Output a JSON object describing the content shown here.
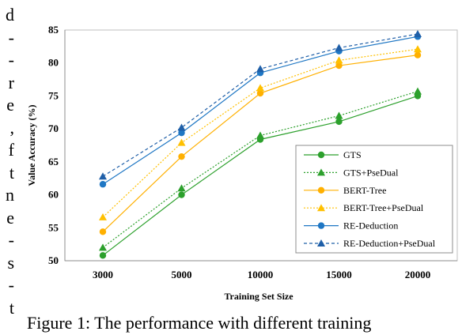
{
  "side_text": [
    "d",
    "-",
    "-",
    "r",
    "e",
    ",",
    "f",
    "t",
    "n",
    "e",
    "-",
    "s",
    "-",
    "t"
  ],
  "caption": "Figure 1: The performance with different training",
  "chart_data": {
    "type": "line",
    "xlabel": "Training Set Size",
    "ylabel": "Value Accuracy (%)",
    "categories": [
      "3000",
      "5000",
      "10000",
      "15000",
      "20000"
    ],
    "ylim": [
      50,
      85
    ],
    "yticks": [
      50,
      55,
      60,
      65,
      70,
      75,
      80,
      85
    ],
    "grid": false,
    "legend_position": "bottom-right",
    "series": [
      {
        "name": "GTS",
        "values": [
          50.8,
          60.0,
          68.4,
          71.1,
          75.0
        ],
        "color": "#2ca02c",
        "dash": "solid",
        "marker": "circle"
      },
      {
        "name": "GTS+PseDual",
        "values": [
          52.0,
          61.0,
          69.0,
          72.0,
          75.7
        ],
        "color": "#2ca02c",
        "dash": "dotted",
        "marker": "triangle"
      },
      {
        "name": "BERT-Tree",
        "values": [
          54.4,
          65.8,
          75.4,
          79.6,
          81.2
        ],
        "color": "#ffb000",
        "dash": "solid",
        "marker": "circle"
      },
      {
        "name": "BERT-Tree+PseDual",
        "values": [
          56.6,
          67.9,
          76.2,
          80.4,
          82.1
        ],
        "color": "#ffc000",
        "dash": "dotted",
        "marker": "triangle"
      },
      {
        "name": "RE-Deduction",
        "values": [
          61.6,
          69.4,
          78.5,
          81.8,
          84.0
        ],
        "color": "#1f77c4",
        "dash": "solid",
        "marker": "circle"
      },
      {
        "name": "RE-Deduction+PseDual",
        "values": [
          62.8,
          70.2,
          79.1,
          82.3,
          84.4
        ],
        "color": "#1f5fa8",
        "dash": "dashed",
        "marker": "triangle"
      }
    ]
  }
}
